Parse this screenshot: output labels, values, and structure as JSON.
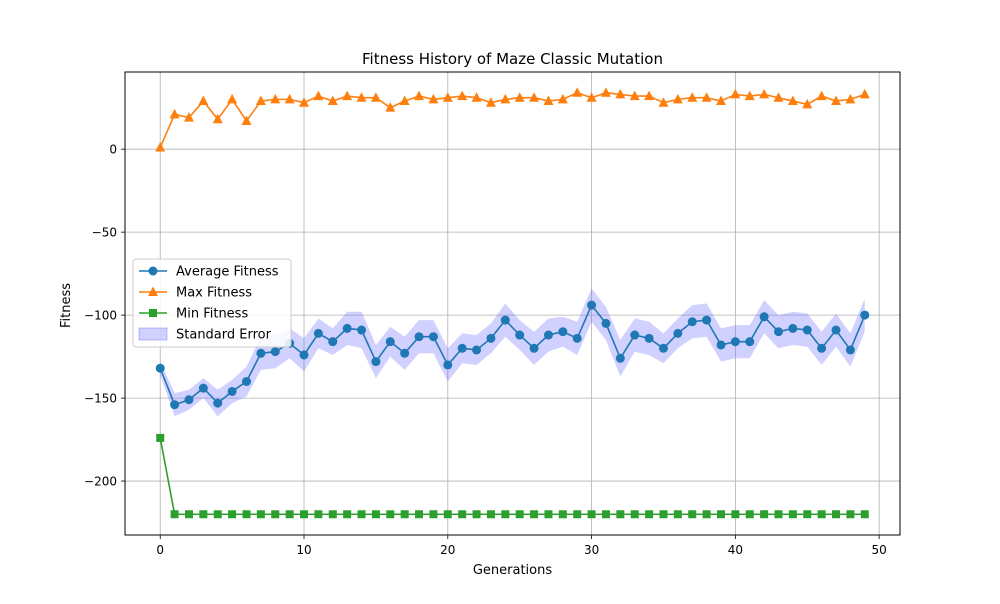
{
  "chart_data": {
    "type": "line",
    "title": "Fitness History of Maze Classic Mutation",
    "xlabel": "Generations",
    "ylabel": "Fitness",
    "xlim": [
      -2.45,
      51.45
    ],
    "ylim": [
      -232.5,
      46.5
    ],
    "xticks": [
      0,
      10,
      20,
      30,
      40,
      50
    ],
    "yticks": [
      -200,
      -150,
      -100,
      -50,
      0
    ],
    "xtick_labels": [
      "0",
      "10",
      "20",
      "30",
      "40",
      "50"
    ],
    "ytick_labels": [
      "−200",
      "−150",
      "−100",
      "−50",
      "0"
    ],
    "grid": true,
    "legend_position": "center-left",
    "x": [
      0,
      1,
      2,
      3,
      4,
      5,
      6,
      7,
      8,
      9,
      10,
      11,
      12,
      13,
      14,
      15,
      16,
      17,
      18,
      19,
      20,
      21,
      22,
      23,
      24,
      25,
      26,
      27,
      28,
      29,
      30,
      31,
      32,
      33,
      34,
      35,
      36,
      37,
      38,
      39,
      40,
      41,
      42,
      43,
      44,
      45,
      46,
      47,
      48,
      49
    ],
    "series": [
      {
        "name": "Average Fitness",
        "color": "#1f77b4",
        "marker": "circle",
        "values": [
          -132,
          -154,
          -151,
          -144,
          -153,
          -146,
          -140,
          -123,
          -122,
          -117,
          -124,
          -111,
          -116,
          -108,
          -109,
          -128,
          -116,
          -123,
          -113,
          -113,
          -130,
          -120,
          -121,
          -114,
          -103,
          -112,
          -120,
          -112,
          -110,
          -114,
          -94,
          -105,
          -126,
          -112,
          -114,
          -120,
          -111,
          -104,
          -103,
          -118,
          -116,
          -116,
          -101,
          -110,
          -108,
          -109,
          -120,
          -109,
          -121,
          -100
        ]
      },
      {
        "name": "Max Fitness",
        "color": "#ff7f0e",
        "marker": "triangle",
        "values": [
          1,
          21,
          19,
          29,
          18,
          30,
          17,
          29,
          30,
          30,
          28,
          32,
          29,
          32,
          31,
          31,
          25,
          29,
          32,
          30,
          31,
          32,
          31,
          28,
          30,
          31,
          31,
          29,
          30,
          34,
          31,
          34,
          33,
          32,
          32,
          28,
          30,
          31,
          31,
          29,
          33,
          32,
          33,
          31,
          29,
          27,
          32,
          29,
          30,
          33
        ]
      },
      {
        "name": "Min Fitness",
        "color": "#2ca02c",
        "marker": "square",
        "values": [
          -174,
          -220,
          -220,
          -220,
          -220,
          -220,
          -220,
          -220,
          -220,
          -220,
          -220,
          -220,
          -220,
          -220,
          -220,
          -220,
          -220,
          -220,
          -220,
          -220,
          -220,
          -220,
          -220,
          -220,
          -220,
          -220,
          -220,
          -220,
          -220,
          -220,
          -220,
          -220,
          -220,
          -220,
          -220,
          -220,
          -220,
          -220,
          -220,
          -220,
          -220,
          -220,
          -220,
          -220,
          -220,
          -220,
          -220,
          -220,
          -220,
          -220
        ]
      }
    ],
    "error_band": {
      "name": "Standard Error",
      "color": "#6666ff",
      "of_series": "Average Fitness",
      "errors": [
        4,
        7,
        6,
        6,
        8,
        7,
        9,
        10,
        10,
        9,
        10,
        9,
        8,
        10,
        11,
        10,
        9,
        10,
        10,
        10,
        10,
        9,
        9,
        9,
        10,
        9,
        10,
        10,
        9,
        10,
        10,
        10,
        11,
        10,
        10,
        9,
        9,
        10,
        10,
        10,
        10,
        10,
        10,
        10,
        10,
        10,
        10,
        10,
        10,
        10
      ]
    }
  }
}
